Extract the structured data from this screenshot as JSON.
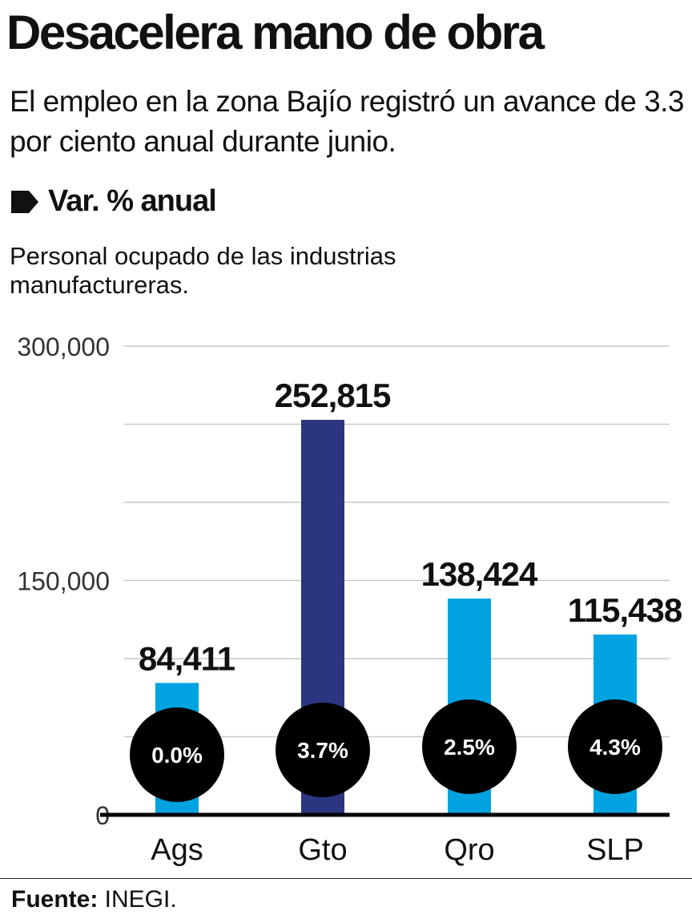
{
  "title": "Desacelera mano de obra",
  "subtitle": "El empleo en la zona Bajío registró un avance de 3.3 por ciento anual durante junio.",
  "section_label": "Var. % anual",
  "section_icon": "tag-icon",
  "footer": {
    "label": "Fuente:",
    "source": "INEGI."
  },
  "chart_data": {
    "type": "bar",
    "title": "Personal ocupado de las industrias manufactureras.",
    "categories": [
      "Ags",
      "Gto",
      "Qro",
      "SLP"
    ],
    "values": [
      84411,
      252815,
      138424,
      115438
    ],
    "value_labels": [
      "84,411",
      "252,815",
      "138,424",
      "115,438"
    ],
    "annual_change_labels": [
      "0.0%",
      "3.7%",
      "2.5%",
      "4.3%"
    ],
    "highlight": "Gto",
    "colors": {
      "default": "#00a3e0",
      "highlight": "#2b3580",
      "badge": "#000000"
    },
    "ylim": [
      0,
      300000
    ],
    "yticks": [
      0,
      150000,
      300000
    ],
    "ytick_labels": [
      "0",
      "150,000",
      "300,000"
    ],
    "grid_step": 50000,
    "grid": true
  }
}
